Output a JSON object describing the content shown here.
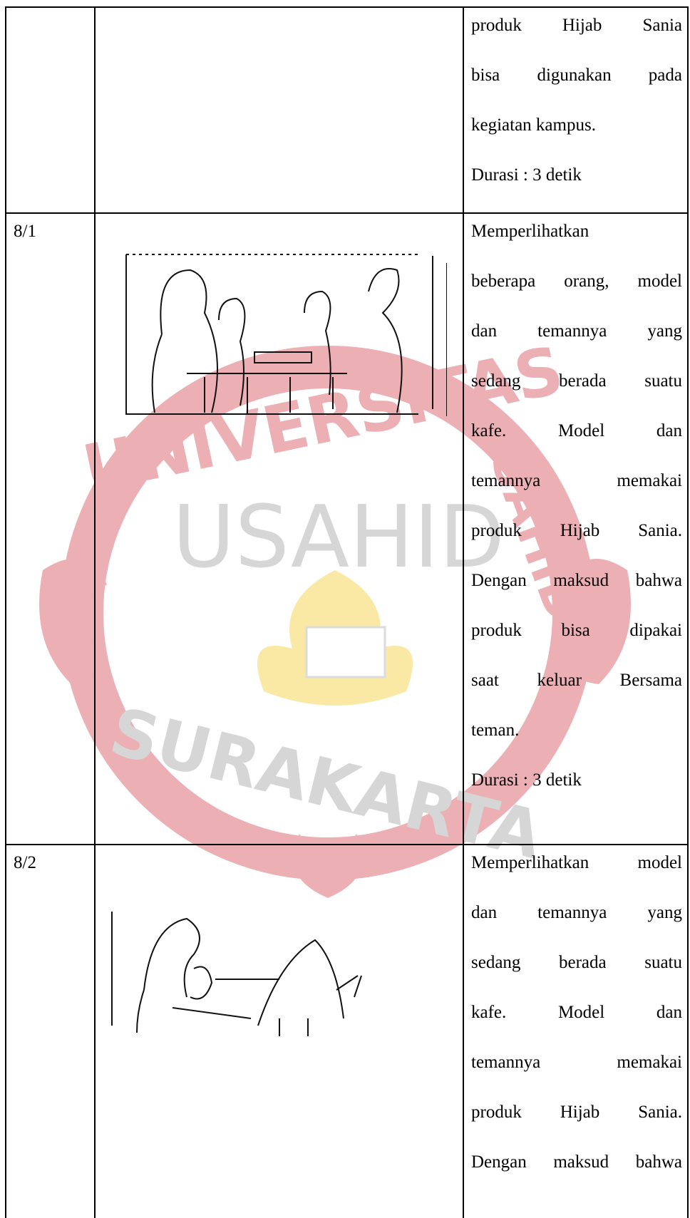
{
  "watermark": {
    "ring_text_top": "UNIVERSITAS",
    "ring_text_bottom": "SURAKARTA",
    "ring_text_right": "SAHID",
    "center": "USAHID"
  },
  "table": {
    "rows": [
      {
        "description_lines": [
          "produk Hijab Sania",
          "bisa digunakan pada",
          "kegiatan kampus."
        ],
        "duration": "Durasi : 3 detik"
      },
      {
        "number": "8/1",
        "description_lines": [
          "Memperlihatkan",
          "beberapa orang, model",
          "dan temannya yang",
          "sedang berada suatu",
          "kafe. Model dan",
          "temannya memakai",
          "produk Hijab Sania.",
          "Dengan maksud bahwa",
          "produk bisa dipakai",
          "saat keluar Bersama",
          "teman."
        ],
        "duration": "Durasi : 3 detik"
      },
      {
        "number": "8/2",
        "description_lines": [
          "Memperlihatkan model",
          "dan temannya yang",
          "sedang berada suatu",
          "kafe. Model dan",
          "temannya memakai",
          "produk Hijab Sania.",
          "Dengan maksud bahwa"
        ]
      }
    ]
  }
}
